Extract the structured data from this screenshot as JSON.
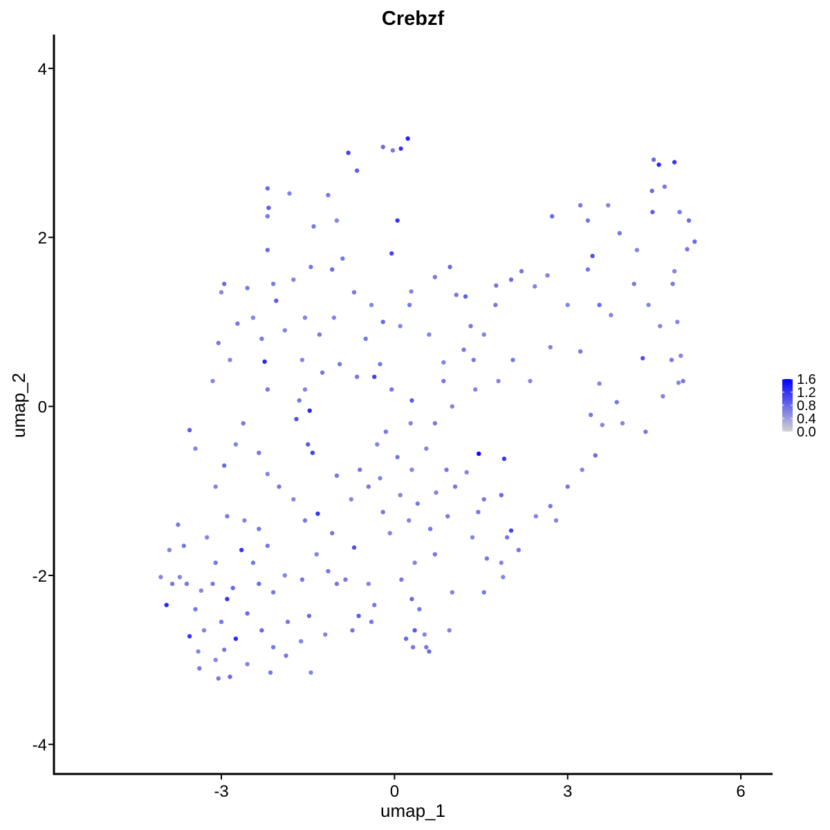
{
  "chart_data": {
    "type": "scatter",
    "title": "Crebzf",
    "xlabel": "umap_1",
    "ylabel": "umap_2",
    "xlim": [
      -5.9,
      6.55
    ],
    "ylim": [
      -4.35,
      4.4
    ],
    "x_ticks": [
      -3,
      0,
      3,
      6
    ],
    "x_tick_labels": [
      "-3",
      "0",
      "3",
      "6"
    ],
    "y_ticks": [
      -4,
      -2,
      0,
      2,
      4
    ],
    "y_tick_labels": [
      "-4",
      "-2",
      "0",
      "2",
      "4"
    ],
    "grid": false,
    "colorscale": {
      "low": "#d3d3d3",
      "high": "#0000ff",
      "min": 0.0,
      "max": 1.6
    },
    "legend": {
      "position": "right",
      "ticks": [
        1.6,
        1.2,
        0.8,
        0.4,
        0.0
      ],
      "labels": [
        "1.6",
        "1.2",
        "0.8",
        "0.4",
        "0.0"
      ]
    },
    "points": [
      [
        0.23,
        3.17,
        1.35
      ],
      [
        0.11,
        3.05,
        1.2
      ],
      [
        -0.8,
        3.0,
        1.1
      ],
      [
        -0.2,
        3.07,
        0.8
      ],
      [
        -0.03,
        3.03,
        0.7
      ],
      [
        -0.65,
        2.79,
        0.9
      ],
      [
        -2.2,
        2.58,
        0.8
      ],
      [
        -2.18,
        2.35,
        0.9
      ],
      [
        -2.2,
        2.25,
        0.7
      ],
      [
        -1.82,
        2.52,
        0.6
      ],
      [
        0.05,
        2.2,
        1.2
      ],
      [
        -0.05,
        1.81,
        1.1
      ],
      [
        4.49,
        2.92,
        0.8
      ],
      [
        4.58,
        2.86,
        1.3
      ],
      [
        4.85,
        2.89,
        1.2
      ],
      [
        4.46,
        2.55,
        0.8
      ],
      [
        4.68,
        2.6,
        0.7
      ],
      [
        4.47,
        2.3,
        0.9
      ],
      [
        4.94,
        2.3,
        0.7
      ],
      [
        5.1,
        2.2,
        0.8
      ],
      [
        5.2,
        1.95,
        0.8
      ],
      [
        5.07,
        1.86,
        0.7
      ],
      [
        4.85,
        1.6,
        0.6
      ],
      [
        4.82,
        1.45,
        0.7
      ],
      [
        4.9,
        1.0,
        0.6
      ],
      [
        4.8,
        0.55,
        0.7
      ],
      [
        4.96,
        0.6,
        0.6
      ],
      [
        4.3,
        0.57,
        1.0
      ],
      [
        5.0,
        0.3,
        0.7
      ],
      [
        4.92,
        0.28,
        0.6
      ],
      [
        3.35,
        2.2,
        0.7
      ],
      [
        3.7,
        2.38,
        0.6
      ],
      [
        3.22,
        2.38,
        0.7
      ],
      [
        2.73,
        2.25,
        0.8
      ],
      [
        3.43,
        1.78,
        1.0
      ],
      [
        3.35,
        1.62,
        0.7
      ],
      [
        3.55,
        1.2,
        0.8
      ],
      [
        3.75,
        1.08,
        0.6
      ],
      [
        3.22,
        0.65,
        0.7
      ],
      [
        3.55,
        0.27,
        0.6
      ],
      [
        3.4,
        -0.1,
        0.7
      ],
      [
        3.6,
        -0.22,
        0.6
      ],
      [
        2.43,
        1.42,
        0.6
      ],
      [
        2.2,
        1.6,
        0.7
      ],
      [
        2.02,
        1.5,
        0.8
      ],
      [
        1.76,
        1.43,
        0.7
      ],
      [
        1.75,
        1.2,
        0.7
      ],
      [
        1.23,
        1.3,
        0.9
      ],
      [
        1.07,
        1.32,
        0.7
      ],
      [
        1.32,
        0.95,
        0.7
      ],
      [
        0.96,
        1.65,
        0.8
      ],
      [
        0.7,
        1.53,
        0.7
      ],
      [
        0.29,
        1.36,
        0.6
      ],
      [
        0.26,
        1.2,
        0.7
      ],
      [
        1.55,
        0.85,
        0.6
      ],
      [
        1.2,
        0.67,
        0.7
      ],
      [
        1.37,
        0.55,
        0.7
      ],
      [
        0.85,
        0.52,
        0.6
      ],
      [
        1.46,
        -0.56,
        1.55
      ],
      [
        1.9,
        -0.62,
        1.2
      ],
      [
        2.02,
        -1.47,
        1.1
      ],
      [
        1.85,
        -1.05,
        0.8
      ],
      [
        1.45,
        -1.25,
        0.7
      ],
      [
        1.05,
        -0.95,
        0.7
      ],
      [
        2.45,
        -1.3,
        0.6
      ],
      [
        1.6,
        -1.8,
        0.7
      ],
      [
        1.88,
        -2.02,
        0.6
      ],
      [
        1.55,
        -2.2,
        0.7
      ],
      [
        1.0,
        -2.2,
        0.6
      ],
      [
        0.95,
        -2.65,
        0.6
      ],
      [
        0.55,
        -2.85,
        0.7
      ],
      [
        0.6,
        -2.9,
        0.8
      ],
      [
        0.35,
        -2.65,
        0.9
      ],
      [
        0.2,
        -2.75,
        0.8
      ],
      [
        0.32,
        -2.85,
        0.7
      ],
      [
        0.52,
        -2.7,
        0.6
      ],
      [
        0.43,
        -2.4,
        0.7
      ],
      [
        0.3,
        -2.28,
        0.8
      ],
      [
        0.12,
        -2.05,
        0.7
      ],
      [
        0.35,
        -1.85,
        0.6
      ],
      [
        0.7,
        -1.75,
        0.7
      ],
      [
        0.25,
        -1.35,
        0.6
      ],
      [
        -0.35,
        -2.35,
        0.7
      ],
      [
        -0.62,
        -2.48,
        0.9
      ],
      [
        -0.73,
        -2.65,
        0.7
      ],
      [
        -1.2,
        -2.7,
        0.6
      ],
      [
        -1.48,
        -2.48,
        0.8
      ],
      [
        -1.0,
        -2.1,
        0.7
      ],
      [
        -1.08,
        -1.5,
        0.7
      ],
      [
        -1.33,
        -1.27,
        1.2
      ],
      [
        -1.5,
        -0.45,
        0.9
      ],
      [
        -1.42,
        -0.55,
        1.1
      ],
      [
        -1.7,
        -0.15,
        1.0
      ],
      [
        -1.55,
        0.2,
        0.6
      ],
      [
        -1.25,
        0.4,
        0.7
      ],
      [
        -1.6,
        0.55,
        0.6
      ],
      [
        -2.25,
        0.53,
        1.3
      ],
      [
        -2.2,
        0.2,
        0.7
      ],
      [
        -1.65,
        0.07,
        0.7
      ],
      [
        -1.47,
        -0.05,
        1.3
      ],
      [
        -3.05,
        0.75,
        0.7
      ],
      [
        -2.85,
        0.55,
        0.6
      ],
      [
        -3.15,
        0.3,
        0.6
      ],
      [
        -3.55,
        -0.28,
        0.9
      ],
      [
        -3.45,
        -0.5,
        0.6
      ],
      [
        -2.95,
        -0.7,
        0.8
      ],
      [
        -3.1,
        -0.95,
        0.6
      ],
      [
        -3.75,
        -1.4,
        0.7
      ],
      [
        -3.65,
        -1.65,
        0.7
      ],
      [
        -3.9,
        -1.7,
        0.6
      ],
      [
        -4.05,
        -2.02,
        0.6
      ],
      [
        -3.85,
        -2.1,
        0.7
      ],
      [
        -3.72,
        -2.02,
        0.6
      ],
      [
        -3.95,
        -2.35,
        1.3
      ],
      [
        -3.6,
        -2.1,
        0.7
      ],
      [
        -3.35,
        -2.18,
        0.6
      ],
      [
        -3.15,
        -2.1,
        0.7
      ],
      [
        -2.9,
        -2.28,
        1.2
      ],
      [
        -2.8,
        -2.15,
        0.8
      ],
      [
        -3.45,
        -2.4,
        0.7
      ],
      [
        -3.3,
        -2.65,
        0.6
      ],
      [
        -3.0,
        -2.55,
        0.7
      ],
      [
        -2.55,
        -2.45,
        0.8
      ],
      [
        -2.65,
        -1.7,
        1.2
      ],
      [
        -2.45,
        -1.85,
        0.7
      ],
      [
        -2.2,
        -1.65,
        0.7
      ],
      [
        -2.35,
        -2.1,
        0.8
      ],
      [
        -2.1,
        -2.2,
        0.7
      ],
      [
        -1.9,
        -2.0,
        0.6
      ],
      [
        -1.6,
        -2.05,
        0.7
      ],
      [
        -1.85,
        -2.55,
        0.7
      ],
      [
        -1.62,
        -2.78,
        0.6
      ],
      [
        -2.1,
        -2.85,
        0.7
      ],
      [
        -2.3,
        -2.65,
        0.8
      ],
      [
        -2.75,
        -2.75,
        1.3
      ],
      [
        -2.95,
        -2.88,
        0.7
      ],
      [
        -3.1,
        -3.0,
        0.6
      ],
      [
        -3.55,
        -2.72,
        1.2
      ],
      [
        -3.4,
        -2.9,
        0.6
      ],
      [
        -3.38,
        -3.1,
        0.7
      ],
      [
        -2.85,
        -3.2,
        0.8
      ],
      [
        -3.05,
        -3.22,
        0.7
      ],
      [
        -2.55,
        -3.05,
        0.6
      ],
      [
        -2.15,
        -3.15,
        0.7
      ],
      [
        -1.45,
        -3.15,
        0.6
      ],
      [
        -1.88,
        -2.95,
        0.7
      ],
      [
        -0.4,
        -2.55,
        0.7
      ],
      [
        -0.85,
        -2.05,
        0.7
      ],
      [
        -0.45,
        -2.1,
        0.6
      ],
      [
        -0.7,
        -1.67,
        1.0
      ],
      [
        0.92,
        -1.3,
        0.7
      ],
      [
        0.62,
        -1.45,
        0.7
      ],
      [
        1.35,
        -1.55,
        0.6
      ],
      [
        0.3,
        -0.75,
        0.6
      ],
      [
        0.55,
        -0.5,
        0.6
      ],
      [
        0.7,
        -0.2,
        0.7
      ],
      [
        0.3,
        0.07,
        0.9
      ],
      [
        -0.15,
        -0.3,
        0.7
      ],
      [
        -0.3,
        -0.45,
        0.6
      ],
      [
        -0.6,
        -0.75,
        0.7
      ],
      [
        -0.45,
        -0.95,
        0.7
      ],
      [
        -0.75,
        -1.1,
        0.6
      ],
      [
        -1.0,
        -0.82,
        0.7
      ],
      [
        -0.65,
        0.35,
        0.7
      ],
      [
        -0.35,
        0.35,
        1.1
      ],
      [
        -0.25,
        0.5,
        0.7
      ],
      [
        -0.5,
        0.8,
        0.7
      ],
      [
        -0.2,
        1.0,
        0.8
      ],
      [
        0.1,
        0.95,
        0.6
      ],
      [
        -0.7,
        1.35,
        0.7
      ],
      [
        -1.08,
        1.62,
        0.8
      ],
      [
        -1.45,
        1.65,
        0.7
      ],
      [
        -1.75,
        1.5,
        0.6
      ],
      [
        -2.05,
        1.25,
        0.9
      ],
      [
        -2.1,
        1.45,
        0.7
      ],
      [
        -2.2,
        1.85,
        0.8
      ],
      [
        -2.55,
        1.4,
        0.7
      ],
      [
        -2.45,
        1.05,
        0.6
      ],
      [
        -2.72,
        0.98,
        0.7
      ],
      [
        -2.95,
        1.45,
        0.8
      ],
      [
        -3.0,
        1.35,
        0.6
      ],
      [
        -1.4,
        2.13,
        0.7
      ],
      [
        -1.15,
        2.5,
        0.7
      ],
      [
        -1.0,
        2.2,
        0.6
      ],
      [
        -0.9,
        1.75,
        0.7
      ],
      [
        -1.55,
        1.05,
        0.6
      ],
      [
        -1.3,
        0.85,
        0.7
      ],
      [
        -0.95,
        0.5,
        0.7
      ],
      [
        -1.9,
        0.9,
        0.6
      ],
      [
        -2.3,
        0.8,
        0.7
      ],
      [
        0.6,
        0.85,
        0.6
      ],
      [
        0.85,
        0.3,
        0.7
      ],
      [
        1.4,
        0.2,
        0.6
      ],
      [
        2.05,
        0.55,
        0.7
      ],
      [
        2.35,
        0.3,
        0.6
      ],
      [
        3.85,
        0.05,
        0.7
      ],
      [
        3.95,
        -0.2,
        0.6
      ],
      [
        4.35,
        -0.3,
        0.7
      ],
      [
        4.65,
        0.12,
        0.6
      ],
      [
        3.48,
        -0.58,
        0.8
      ],
      [
        3.25,
        -0.75,
        0.6
      ],
      [
        3.0,
        -0.95,
        0.7
      ],
      [
        2.7,
        -1.18,
        0.7
      ],
      [
        2.8,
        -1.35,
        0.6
      ],
      [
        2.15,
        -1.7,
        0.7
      ],
      [
        1.85,
        -1.85,
        0.6
      ],
      [
        1.95,
        -1.55,
        0.7
      ],
      [
        1.55,
        -1.1,
        0.7
      ],
      [
        1.25,
        -0.78,
        0.6
      ],
      [
        0.9,
        -0.75,
        0.7
      ],
      [
        0.72,
        -1.02,
        0.6
      ],
      [
        0.4,
        -1.15,
        0.7
      ],
      [
        0.1,
        -1.05,
        0.6
      ],
      [
        -0.2,
        -1.25,
        0.7
      ],
      [
        -0.08,
        -1.5,
        0.6
      ],
      [
        -2.62,
        -0.2,
        0.7
      ],
      [
        -2.75,
        -0.45,
        0.6
      ],
      [
        -2.35,
        -0.55,
        0.7
      ],
      [
        -2.2,
        -0.8,
        0.6
      ],
      [
        -2.0,
        -0.95,
        0.7
      ],
      [
        -1.75,
        -1.1,
        0.6
      ],
      [
        -1.55,
        -1.35,
        0.7
      ],
      [
        -1.35,
        -1.75,
        0.6
      ],
      [
        -1.15,
        -1.95,
        0.7
      ],
      [
        -2.9,
        -1.3,
        0.7
      ],
      [
        -3.25,
        -1.55,
        0.6
      ],
      [
        -3.1,
        -1.85,
        0.7
      ],
      [
        -2.6,
        -1.35,
        0.6
      ],
      [
        -2.35,
        -1.45,
        0.7
      ],
      [
        -0.05,
        0.2,
        0.7
      ],
      [
        0.28,
        -0.2,
        0.6
      ],
      [
        0.05,
        -0.6,
        0.7
      ],
      [
        -0.25,
        -0.85,
        0.6
      ],
      [
        1.0,
        0.0,
        0.6
      ],
      [
        1.8,
        0.3,
        0.6
      ],
      [
        2.7,
        0.7,
        0.6
      ],
      [
        4.15,
        1.45,
        0.7
      ],
      [
        4.4,
        1.2,
        0.6
      ],
      [
        4.6,
        0.95,
        0.6
      ],
      [
        3.9,
        2.05,
        0.7
      ],
      [
        4.2,
        1.85,
        0.6
      ],
      [
        3.0,
        1.2,
        0.6
      ],
      [
        2.65,
        1.55,
        0.6
      ],
      [
        -0.4,
        1.2,
        0.6
      ],
      [
        -1.05,
        1.05,
        0.6
      ]
    ]
  }
}
